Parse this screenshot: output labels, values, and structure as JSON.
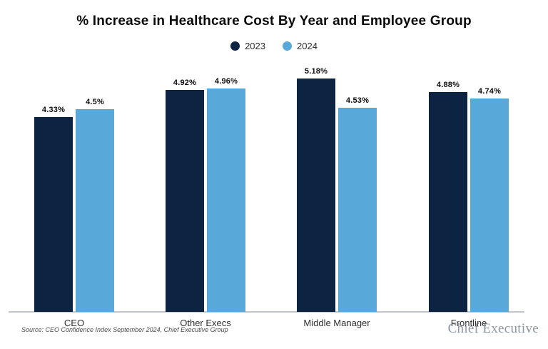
{
  "title": "% Increase in Healthcare Cost By Year and Employee Group",
  "footer": {
    "source": "Source: CEO Confidence Index September 2024, Chief Executive Group",
    "brand": "Chief Executive"
  },
  "colors": {
    "series_2023": "#0d2342",
    "series_2024": "#58a9d9",
    "axis_line": "#c2c5c9"
  },
  "chart_data": {
    "type": "bar",
    "title": "% Increase in Healthcare Cost By Year and Employee Group",
    "categories": [
      "CEO",
      "Other Execs",
      "Middle Manager",
      "Frontline"
    ],
    "series": [
      {
        "name": "2023",
        "color": "#0d2342",
        "values": [
          4.33,
          4.92,
          5.18,
          4.88
        ],
        "labels": [
          "4.33%",
          "4.92%",
          "5.18%",
          "4.88%"
        ]
      },
      {
        "name": "2024",
        "color": "#58a9d9",
        "values": [
          4.5,
          4.96,
          4.53,
          4.74
        ],
        "labels": [
          "4.5%",
          "4.96%",
          "4.53%",
          "4.74%"
        ]
      }
    ],
    "xlabel": "",
    "ylabel": "",
    "ylim": [
      0,
      5.7
    ],
    "grid": false,
    "y_axis_ticks_visible": false,
    "legend_position": "top",
    "value_labels": true
  }
}
